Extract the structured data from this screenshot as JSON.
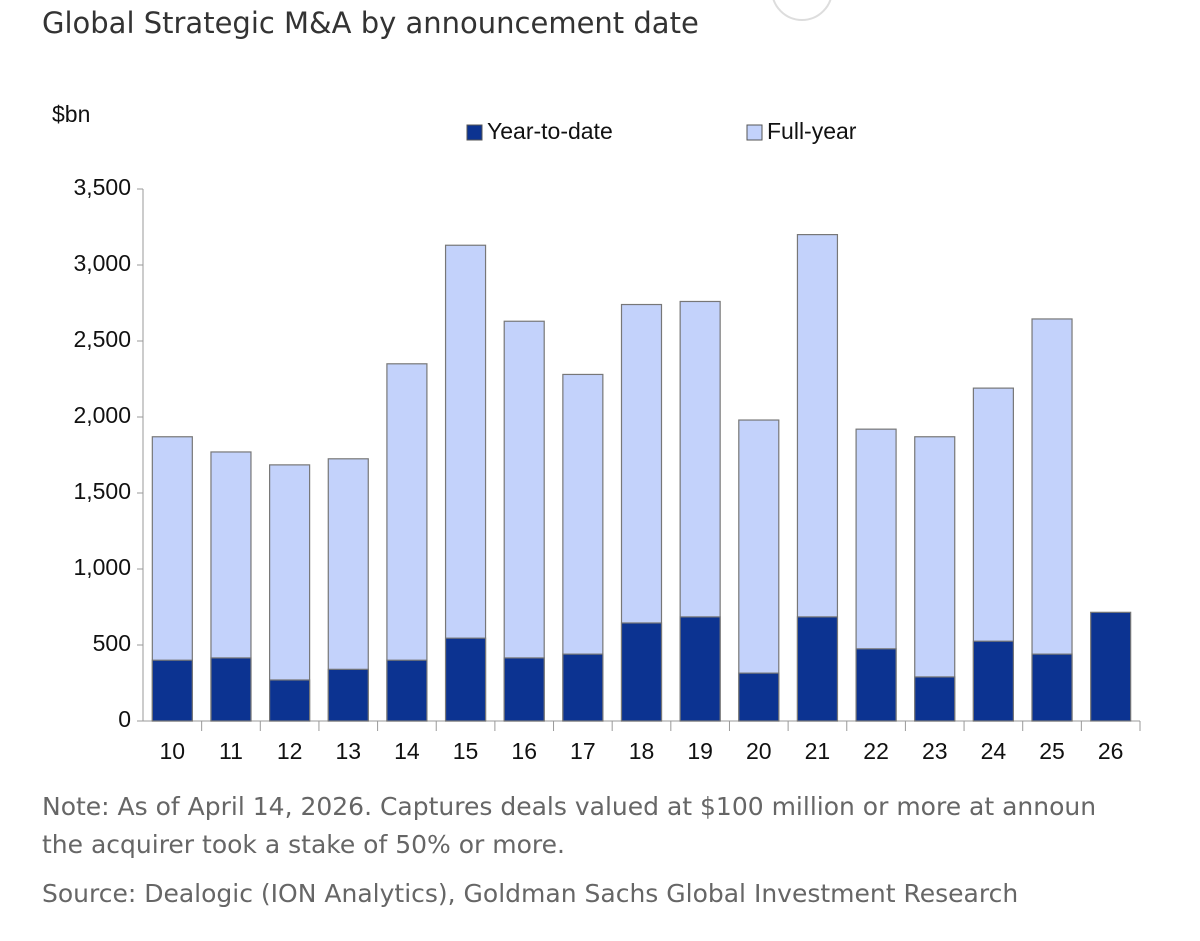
{
  "chart_data": {
    "type": "bar",
    "title": "Global Strategic M&A by announcement date",
    "y_label": "$bn",
    "categories": [
      "10",
      "11",
      "12",
      "13",
      "14",
      "15",
      "16",
      "17",
      "18",
      "19",
      "20",
      "21",
      "22",
      "23",
      "24",
      "25",
      "26"
    ],
    "series": [
      {
        "name": "Year-to-date",
        "color": "#0c3391",
        "values": [
          400,
          415,
          270,
          340,
          400,
          545,
          415,
          440,
          645,
          685,
          315,
          685,
          475,
          290,
          525,
          440,
          715
        ]
      },
      {
        "name": "Full-year",
        "color": "#c3d2fb",
        "values": [
          1870,
          1770,
          1685,
          1725,
          2350,
          3130,
          2630,
          2280,
          2740,
          2760,
          1980,
          3200,
          1920,
          1870,
          2190,
          2645,
          null
        ]
      }
    ],
    "ylim": [
      0,
      3500
    ],
    "yticks": [
      0,
      500,
      {
        "value": 1000,
        "label": "1,000"
      },
      {
        "value": 1500,
        "label": "1,500"
      },
      {
        "value": 2000,
        "label": "2,000"
      },
      {
        "value": 2500,
        "label": "2,500"
      },
      {
        "value": 3000,
        "label": "3,000"
      },
      {
        "value": 3500,
        "label": "3,500"
      }
    ],
    "notes": [
      "Note: As of April 14, 2026. Captures deals valued at $100 million or more at announ",
      "the acquirer took a stake of 50% or more."
    ],
    "source": "Source: Dealogic (ION Analytics), Goldman Sachs Global Investment Research"
  }
}
